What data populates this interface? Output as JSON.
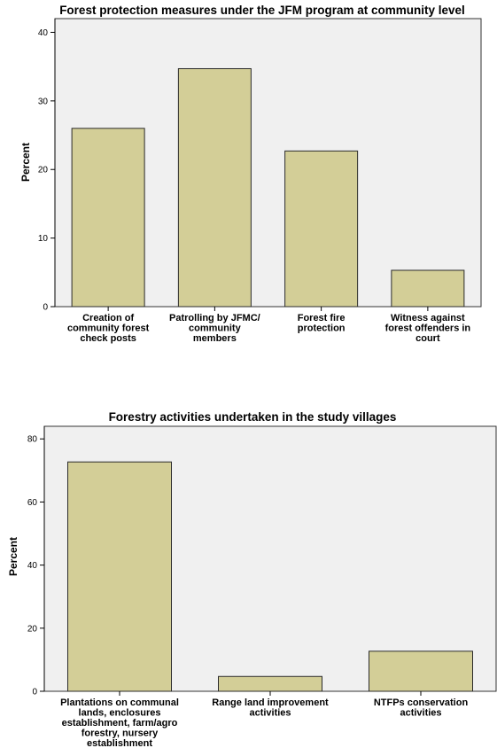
{
  "colors": {
    "bar_fill": "#d3ce97",
    "plot_bg": "#f0f0f0"
  },
  "chart_data": [
    {
      "type": "bar",
      "title": "Forest protection measures under the JFM program at community level",
      "ylabel": "Percent",
      "xlabel": "",
      "ylim": [
        0,
        42
      ],
      "yticks": [
        0,
        10,
        20,
        30,
        40
      ],
      "categories": [
        "Creation of community forest check posts",
        "Patrolling by JFMC/ community members",
        "Forest fire protection",
        "Witness against forest offenders in court"
      ],
      "category_lines": [
        [
          "Creation of",
          "community forest",
          "check posts"
        ],
        [
          "Patrolling by JFMC/",
          "community",
          "members"
        ],
        [
          "Forest fire",
          "protection"
        ],
        [
          "Witness against",
          "forest offenders in",
          "court"
        ]
      ],
      "values": [
        26.0,
        34.7,
        22.7,
        5.3
      ],
      "grid": false,
      "legend": "none"
    },
    {
      "type": "bar",
      "title": "Forestry activities undertaken in the study villages",
      "ylabel": "Percent",
      "xlabel": "",
      "ylim": [
        0,
        84
      ],
      "yticks": [
        0,
        20,
        40,
        60,
        80
      ],
      "categories": [
        "Plantations on communal lands, enclosures establishment, farm/agro forestry, nursery establishment",
        "Range land improvement activities",
        "NTFPs conservation activities"
      ],
      "category_lines": [
        [
          "Plantations on communal",
          "lands, enclosures",
          "establishment, farm/agro",
          "forestry, nursery",
          "establishment"
        ],
        [
          "Range land improvement",
          "activities"
        ],
        [
          "NTFPs conservation",
          "activities"
        ]
      ],
      "values": [
        72.7,
        4.7,
        12.7
      ],
      "grid": false,
      "legend": "none"
    }
  ]
}
